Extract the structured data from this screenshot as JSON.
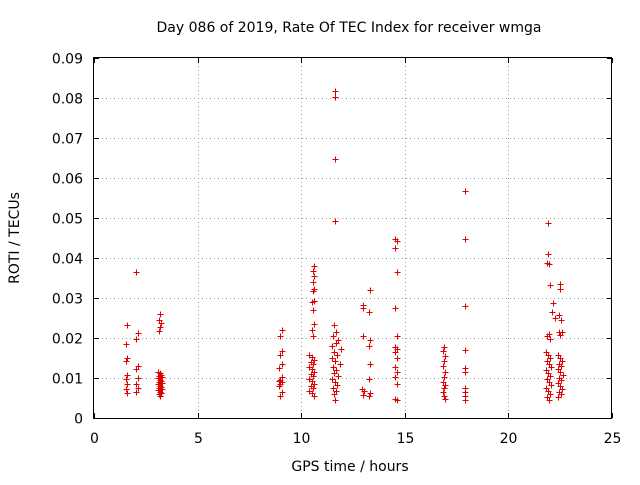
{
  "chart_data": {
    "type": "scatter",
    "title": "Day 086 of 2019, Rate Of TEC Index for receiver wmga",
    "xlabel": "GPS time / hours",
    "ylabel": "ROTI / TECUs",
    "xlim": [
      0,
      25
    ],
    "ylim": [
      0,
      0.09
    ],
    "grid": true,
    "marker": "plus",
    "marker_color": "#e00000",
    "x_ticks": [
      "0",
      "5",
      "10",
      "15",
      "20",
      "25"
    ],
    "y_ticks": [
      "0",
      "0.01",
      "0.02",
      "0.03",
      "0.04",
      "0.05",
      "0.06",
      "0.07",
      "0.08",
      "0.09"
    ],
    "series": [
      {
        "points": [
          [
            1.6,
            0.0232
          ],
          [
            1.55,
            0.0186
          ],
          [
            1.6,
            0.015
          ],
          [
            1.55,
            0.0143
          ],
          [
            1.6,
            0.0108
          ],
          [
            1.55,
            0.0098
          ],
          [
            1.6,
            0.0085
          ],
          [
            1.55,
            0.0072
          ],
          [
            1.6,
            0.0063
          ],
          [
            2.05,
            0.0366
          ],
          [
            2.1,
            0.0213
          ],
          [
            2.05,
            0.0198
          ],
          [
            2.1,
            0.013
          ],
          [
            2.05,
            0.0123
          ],
          [
            2.1,
            0.01
          ],
          [
            2.05,
            0.0085
          ],
          [
            2.1,
            0.0075
          ],
          [
            2.05,
            0.0065
          ],
          [
            3.2,
            0.0259
          ],
          [
            3.15,
            0.0246
          ],
          [
            3.25,
            0.0238
          ],
          [
            3.2,
            0.0227
          ],
          [
            3.15,
            0.0218
          ],
          [
            3.1,
            0.0115
          ],
          [
            3.2,
            0.0112
          ],
          [
            3.25,
            0.0108
          ],
          [
            3.15,
            0.0105
          ],
          [
            3.3,
            0.0102
          ],
          [
            3.1,
            0.0099
          ],
          [
            3.2,
            0.0096
          ],
          [
            3.25,
            0.0093
          ],
          [
            3.15,
            0.009
          ],
          [
            3.3,
            0.0087
          ],
          [
            3.1,
            0.0084
          ],
          [
            3.2,
            0.0081
          ],
          [
            3.25,
            0.0078
          ],
          [
            3.15,
            0.0075
          ],
          [
            3.3,
            0.0072
          ],
          [
            3.1,
            0.0069
          ],
          [
            3.2,
            0.0066
          ],
          [
            3.25,
            0.0063
          ],
          [
            3.15,
            0.006
          ],
          [
            3.2,
            0.0055
          ],
          [
            9.05,
            0.022
          ],
          [
            9.0,
            0.0205
          ],
          [
            9.05,
            0.0168
          ],
          [
            9.0,
            0.0158
          ],
          [
            9.05,
            0.0135
          ],
          [
            8.95,
            0.0125
          ],
          [
            9.05,
            0.0102
          ],
          [
            9.0,
            0.0096
          ],
          [
            8.95,
            0.0092
          ],
          [
            9.05,
            0.0089
          ],
          [
            9.0,
            0.0085
          ],
          [
            8.95,
            0.008
          ],
          [
            9.05,
            0.0065
          ],
          [
            9.0,
            0.0055
          ],
          [
            10.6,
            0.038
          ],
          [
            10.55,
            0.0368
          ],
          [
            10.6,
            0.0355
          ],
          [
            10.55,
            0.034
          ],
          [
            10.6,
            0.0322
          ],
          [
            10.55,
            0.0318
          ],
          [
            10.6,
            0.0293
          ],
          [
            10.5,
            0.029
          ],
          [
            10.55,
            0.027
          ],
          [
            10.6,
            0.0235
          ],
          [
            10.5,
            0.022
          ],
          [
            10.55,
            0.0205
          ],
          [
            10.4,
            0.0158
          ],
          [
            10.5,
            0.0152
          ],
          [
            10.6,
            0.0146
          ],
          [
            10.45,
            0.014
          ],
          [
            10.55,
            0.0134
          ],
          [
            10.4,
            0.0128
          ],
          [
            10.5,
            0.0122
          ],
          [
            10.6,
            0.0116
          ],
          [
            10.45,
            0.011
          ],
          [
            10.55,
            0.0104
          ],
          [
            10.4,
            0.0098
          ],
          [
            10.5,
            0.0092
          ],
          [
            10.6,
            0.0086
          ],
          [
            10.45,
            0.008
          ],
          [
            10.55,
            0.0074
          ],
          [
            10.4,
            0.0068
          ],
          [
            10.5,
            0.0062
          ],
          [
            10.6,
            0.0055
          ],
          [
            11.65,
            0.0818
          ],
          [
            11.65,
            0.0802
          ],
          [
            11.65,
            0.0647
          ],
          [
            11.65,
            0.0493
          ],
          [
            11.6,
            0.0232
          ],
          [
            11.7,
            0.0215
          ],
          [
            11.55,
            0.0205
          ],
          [
            11.8,
            0.0195
          ],
          [
            11.7,
            0.0188
          ],
          [
            11.5,
            0.018
          ],
          [
            11.9,
            0.0172
          ],
          [
            11.6,
            0.0165
          ],
          [
            11.75,
            0.0158
          ],
          [
            11.5,
            0.015
          ],
          [
            11.65,
            0.0142
          ],
          [
            11.85,
            0.0135
          ],
          [
            11.55,
            0.0128
          ],
          [
            11.7,
            0.012
          ],
          [
            11.6,
            0.0112
          ],
          [
            11.8,
            0.0105
          ],
          [
            11.5,
            0.0098
          ],
          [
            11.65,
            0.009
          ],
          [
            11.75,
            0.0082
          ],
          [
            11.55,
            0.0075
          ],
          [
            11.7,
            0.0068
          ],
          [
            11.6,
            0.006
          ],
          [
            11.65,
            0.0045
          ],
          [
            13.0,
            0.0282
          ],
          [
            13.0,
            0.0275
          ],
          [
            13.0,
            0.0205
          ],
          [
            12.95,
            0.0072
          ],
          [
            13.05,
            0.0068
          ],
          [
            13.0,
            0.0058
          ],
          [
            13.3,
            0.032
          ],
          [
            13.25,
            0.0265
          ],
          [
            13.3,
            0.0195
          ],
          [
            13.25,
            0.018
          ],
          [
            13.3,
            0.0135
          ],
          [
            13.25,
            0.0098
          ],
          [
            13.3,
            0.0062
          ],
          [
            13.25,
            0.0055
          ],
          [
            14.55,
            0.0448
          ],
          [
            14.6,
            0.0443
          ],
          [
            14.55,
            0.0425
          ],
          [
            14.6,
            0.0364
          ],
          [
            14.55,
            0.0275
          ],
          [
            14.6,
            0.0205
          ],
          [
            14.55,
            0.0178
          ],
          [
            14.6,
            0.0172
          ],
          [
            14.55,
            0.0165
          ],
          [
            14.6,
            0.015
          ],
          [
            14.55,
            0.0128
          ],
          [
            14.6,
            0.0115
          ],
          [
            14.55,
            0.0102
          ],
          [
            14.6,
            0.0085
          ],
          [
            14.55,
            0.0048
          ],
          [
            14.6,
            0.0045
          ],
          [
            16.9,
            0.0178
          ],
          [
            16.85,
            0.0168
          ],
          [
            16.95,
            0.0155
          ],
          [
            16.9,
            0.0142
          ],
          [
            16.85,
            0.013
          ],
          [
            16.95,
            0.0115
          ],
          [
            16.9,
            0.0102
          ],
          [
            16.85,
            0.009
          ],
          [
            16.95,
            0.0082
          ],
          [
            16.9,
            0.0075
          ],
          [
            16.85,
            0.0065
          ],
          [
            16.9,
            0.0055
          ],
          [
            16.95,
            0.0048
          ],
          [
            17.9,
            0.0568
          ],
          [
            17.9,
            0.0448
          ],
          [
            17.9,
            0.028
          ],
          [
            17.9,
            0.017
          ],
          [
            17.9,
            0.0125
          ],
          [
            17.9,
            0.0115
          ],
          [
            17.9,
            0.0075
          ],
          [
            17.9,
            0.0065
          ],
          [
            17.9,
            0.0055
          ],
          [
            17.9,
            0.0045
          ],
          [
            21.9,
            0.0488
          ],
          [
            21.9,
            0.041
          ],
          [
            21.85,
            0.0388
          ],
          [
            21.95,
            0.0385
          ],
          [
            22.0,
            0.0333
          ],
          [
            22.15,
            0.0288
          ],
          [
            22.1,
            0.0265
          ],
          [
            21.95,
            0.021
          ],
          [
            21.85,
            0.0205
          ],
          [
            22.0,
            0.0198
          ],
          [
            22.25,
            0.025
          ],
          [
            21.8,
            0.0165
          ],
          [
            21.9,
            0.0158
          ],
          [
            22.0,
            0.015
          ],
          [
            21.85,
            0.0142
          ],
          [
            21.95,
            0.0135
          ],
          [
            22.05,
            0.0128
          ],
          [
            21.8,
            0.012
          ],
          [
            21.9,
            0.0112
          ],
          [
            22.0,
            0.0105
          ],
          [
            21.85,
            0.0098
          ],
          [
            21.95,
            0.009
          ],
          [
            22.05,
            0.0082
          ],
          [
            21.8,
            0.0075
          ],
          [
            21.9,
            0.0068
          ],
          [
            22.0,
            0.006
          ],
          [
            21.85,
            0.0052
          ],
          [
            21.95,
            0.0045
          ],
          [
            22.5,
            0.0335
          ],
          [
            22.5,
            0.0322
          ],
          [
            22.45,
            0.0258
          ],
          [
            22.55,
            0.0245
          ],
          [
            22.45,
            0.0215
          ],
          [
            22.6,
            0.0215
          ],
          [
            22.5,
            0.0208
          ],
          [
            22.4,
            0.0158
          ],
          [
            22.5,
            0.015
          ],
          [
            22.6,
            0.0143
          ],
          [
            22.45,
            0.0136
          ],
          [
            22.55,
            0.0129
          ],
          [
            22.4,
            0.0122
          ],
          [
            22.5,
            0.0115
          ],
          [
            22.65,
            0.0108
          ],
          [
            22.45,
            0.0101
          ],
          [
            22.55,
            0.0094
          ],
          [
            22.4,
            0.0087
          ],
          [
            22.5,
            0.008
          ],
          [
            22.6,
            0.0073
          ],
          [
            22.45,
            0.0066
          ],
          [
            22.55,
            0.0059
          ],
          [
            22.4,
            0.0052
          ]
        ]
      }
    ]
  }
}
